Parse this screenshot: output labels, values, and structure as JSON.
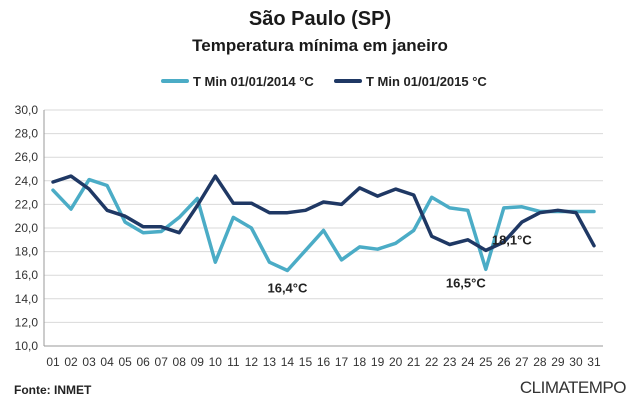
{
  "header": {
    "title": "São Paulo (SP)",
    "subtitle": "Temperatura mínima em janeiro"
  },
  "footer": {
    "source": "Fonte: INMET",
    "brand": "CLIMATEMPO"
  },
  "colors": {
    "series_2014": "#4BACC6",
    "series_2015": "#1F3864",
    "grid": "#d9d9d9",
    "axis": "#999999"
  },
  "chart_data": {
    "type": "line",
    "title": "São Paulo (SP)",
    "subtitle": "Temperatura mínima em janeiro",
    "xlabel": "",
    "ylabel": "",
    "ylim": [
      10,
      30
    ],
    "ytick_step": 2,
    "grid": true,
    "legend": "top-center",
    "categories": [
      "01",
      "02",
      "03",
      "04",
      "05",
      "06",
      "07",
      "08",
      "09",
      "10",
      "11",
      "12",
      "13",
      "14",
      "15",
      "16",
      "17",
      "18",
      "19",
      "20",
      "21",
      "22",
      "23",
      "24",
      "25",
      "26",
      "27",
      "28",
      "29",
      "30",
      "31"
    ],
    "y_tick_labels": [
      "10,0",
      "12,0",
      "14,0",
      "16,0",
      "18,0",
      "20,0",
      "22,0",
      "24,0",
      "26,0",
      "28,0",
      "30,0"
    ],
    "series": [
      {
        "name": "T Min 01/01/2014 °C",
        "color": "#4BACC6",
        "values": [
          23.2,
          21.6,
          24.1,
          23.6,
          20.5,
          19.6,
          19.7,
          20.9,
          22.5,
          17.1,
          20.9,
          20.0,
          17.1,
          16.4,
          18.1,
          19.8,
          17.3,
          18.4,
          18.2,
          18.7,
          19.8,
          22.6,
          21.7,
          21.5,
          16.5,
          21.7,
          21.8,
          21.4,
          21.4,
          21.4,
          21.4
        ]
      },
      {
        "name": "T Min 01/01/2015 °C",
        "color": "#1F3864",
        "values": [
          23.9,
          24.4,
          23.3,
          21.5,
          21.0,
          20.1,
          20.1,
          19.6,
          21.9,
          24.4,
          22.1,
          22.1,
          21.3,
          21.3,
          21.5,
          22.2,
          22.0,
          23.4,
          22.7,
          23.3,
          22.8,
          19.3,
          18.6,
          19.0,
          18.1,
          18.8,
          20.5,
          21.3,
          21.5,
          21.3,
          18.5
        ]
      }
    ],
    "annotations": [
      {
        "text": "16,4°C",
        "category": "14",
        "value": 16.4,
        "series": 0
      },
      {
        "text": "16,5°C",
        "category": "25",
        "value": 16.5,
        "series": 0
      },
      {
        "text": "18,1°C",
        "category": "25",
        "value": 18.1,
        "series": 1
      }
    ]
  }
}
